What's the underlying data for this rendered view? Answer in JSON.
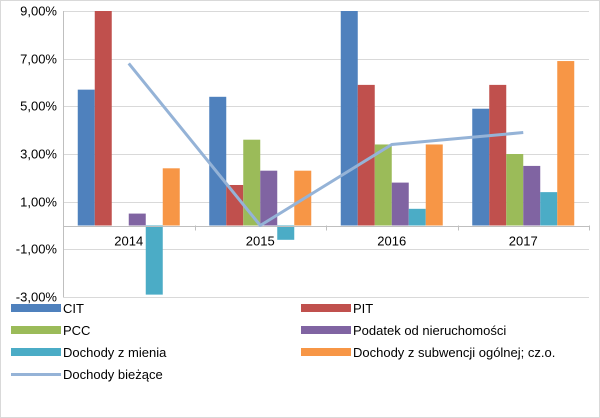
{
  "chart_data": {
    "type": "bar",
    "categories": [
      "2014",
      "2015",
      "2016",
      "2017"
    ],
    "ylim": [
      -3,
      9
    ],
    "y_ticks": [
      "-3,00%",
      "-1,00%",
      "1,00%",
      "3,00%",
      "5,00%",
      "7,00%",
      "9,00%"
    ],
    "y_tick_values": [
      -3,
      -1,
      1,
      3,
      5,
      7,
      9
    ],
    "grid": true,
    "legend_position": "bottom",
    "series": [
      {
        "name": "CIT",
        "color": "#4f81bd",
        "type": "bar",
        "values": [
          5.7,
          5.4,
          9.0,
          4.9
        ]
      },
      {
        "name": "PIT",
        "color": "#c0504d",
        "type": "bar",
        "values": [
          9.0,
          1.7,
          5.9,
          5.9
        ]
      },
      {
        "name": "PCC",
        "color": "#9bbb59",
        "type": "bar",
        "values": [
          0.0,
          3.6,
          3.4,
          3.0
        ]
      },
      {
        "name": "Podatek od nieruchomości",
        "color": "#8064a2",
        "type": "bar",
        "values": [
          0.5,
          2.3,
          1.8,
          2.5
        ]
      },
      {
        "name": "Dochody z mienia",
        "color": "#4bacc6",
        "type": "bar",
        "values": [
          -2.9,
          -0.6,
          0.7,
          1.4
        ]
      },
      {
        "name": "Dochody z subwencji ogólnej; cz.o.",
        "color": "#f79646",
        "type": "bar",
        "values": [
          2.4,
          2.3,
          3.4,
          6.9
        ]
      },
      {
        "name": "Dochody bieżące",
        "color": "#95b3d7",
        "type": "line",
        "values": [
          6.8,
          0.0,
          3.4,
          3.9
        ]
      }
    ]
  }
}
